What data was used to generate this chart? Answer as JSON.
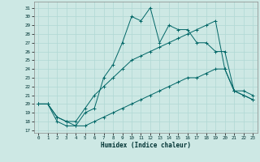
{
  "xlabel": "Humidex (Indice chaleur)",
  "bg_color": "#cde8e4",
  "line_color": "#006666",
  "grid_color": "#b0d8d4",
  "xlim": [
    -0.5,
    23.5
  ],
  "ylim": [
    16.7,
    31.7
  ],
  "yticks": [
    17,
    18,
    19,
    20,
    21,
    22,
    23,
    24,
    25,
    26,
    27,
    28,
    29,
    30,
    31
  ],
  "xticks": [
    0,
    1,
    2,
    3,
    4,
    5,
    6,
    7,
    8,
    9,
    10,
    11,
    12,
    13,
    14,
    15,
    16,
    17,
    18,
    19,
    20,
    21,
    22,
    23
  ],
  "lines": [
    {
      "x": [
        0,
        1,
        2,
        3,
        4,
        5,
        6,
        7,
        8,
        9,
        10,
        11,
        12,
        13,
        14,
        15,
        16,
        17,
        18,
        19,
        20,
        21,
        22,
        23
      ],
      "y": [
        20,
        20,
        18,
        17.5,
        17.5,
        19,
        19.5,
        23,
        24.5,
        27,
        30,
        29.5,
        31,
        27,
        29,
        28.5,
        28.5,
        27,
        27,
        26,
        26,
        21.5,
        21.5,
        21
      ]
    },
    {
      "x": [
        0,
        1,
        2,
        3,
        4,
        5,
        6,
        7,
        8,
        9,
        10,
        11,
        12,
        13,
        14,
        15,
        16,
        17,
        18,
        19,
        20,
        21,
        22,
        23
      ],
      "y": [
        20,
        20,
        18.5,
        18,
        18,
        19.5,
        21,
        22,
        23,
        24,
        25,
        25.5,
        26,
        26.5,
        27,
        27.5,
        28,
        28.5,
        29,
        29.5,
        24,
        21.5,
        21,
        20.5
      ]
    },
    {
      "x": [
        0,
        1,
        2,
        3,
        4,
        5,
        6,
        7,
        8,
        9,
        10,
        11,
        12,
        13,
        14,
        15,
        16,
        17,
        18,
        19,
        20,
        21,
        22,
        23
      ],
      "y": [
        20,
        20,
        18.5,
        18,
        17.5,
        17.5,
        18,
        18.5,
        19,
        19.5,
        20,
        20.5,
        21,
        21.5,
        22,
        22.5,
        23,
        23,
        23.5,
        24,
        24,
        21.5,
        21,
        20.5
      ]
    }
  ]
}
